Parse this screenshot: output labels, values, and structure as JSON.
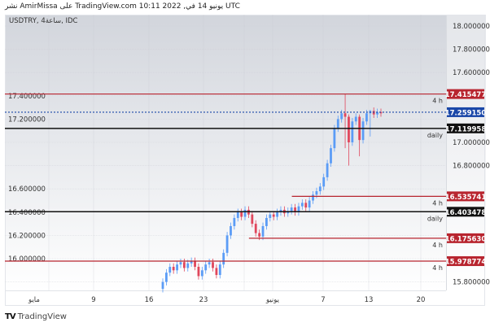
{
  "header": {
    "published": "نشر AmirMissa على TradingView.com 10:11 2022 ,يونيو 14 في UTC",
    "symbol": "USDTRY, 4ساعة, IDC"
  },
  "footer": {
    "brand": "TradingView",
    "logo_icon": "tradingview-logo-icon"
  },
  "colors": {
    "up": "#5b9cf6",
    "down": "#e0475c",
    "resistance": "#b8252f",
    "support_daily": "#111111",
    "current": "#1a47a8"
  },
  "chart_data": {
    "type": "candlestick",
    "title": "USDTRY, 4ساعة, IDC",
    "ylim": [
      15.7,
      18.1
    ],
    "y_ticks": [
      "18.000000",
      "17.800000",
      "17.600000",
      "17.400000",
      "17.200000",
      "17.000000",
      "16.800000",
      "16.600000",
      "16.400000",
      "16.200000",
      "16.000000",
      "15.800000"
    ],
    "x_ticks": [
      "مايو",
      "9",
      "16",
      "23",
      "يونيو",
      "7",
      "13",
      "20"
    ],
    "grid": true,
    "closes": [
      15.8,
      15.88,
      15.93,
      15.9,
      15.95,
      15.97,
      15.92,
      15.96,
      15.98,
      15.93,
      15.85,
      15.9,
      15.95,
      15.97,
      15.92,
      15.86,
      15.95,
      16.05,
      16.2,
      16.28,
      16.35,
      16.4,
      16.36,
      16.42,
      16.38,
      16.3,
      16.22,
      16.19,
      16.28,
      16.35,
      16.38,
      16.36,
      16.4,
      16.42,
      16.39,
      16.41,
      16.44,
      16.4,
      16.45,
      16.48,
      16.44,
      16.5,
      16.55,
      16.58,
      16.62,
      16.7,
      16.82,
      16.95,
      17.12,
      17.2,
      17.25,
      17.22,
      17.0,
      17.18,
      17.22,
      17.02,
      17.18,
      17.25,
      17.27,
      17.24,
      17.26,
      17.25
    ],
    "first_open": 15.74,
    "extremes": [
      {
        "index": 51,
        "high": 17.42,
        "low": 16.95
      },
      {
        "index": 52,
        "high": 17.24,
        "low": 16.8
      },
      {
        "index": 55,
        "high": 17.24,
        "low": 16.88
      },
      {
        "index": 58,
        "high": 17.28,
        "low": 17.05
      }
    ],
    "levels": [
      {
        "price": "17.415477",
        "tag": "4 h",
        "style": "red",
        "from_index": 0
      },
      {
        "price": "17.259150",
        "tag": "",
        "style": "current",
        "from_index": 0
      },
      {
        "price": "17.119958",
        "tag": "daily",
        "style": "daily",
        "from_index": 0
      },
      {
        "price": "16.535741",
        "tag": "4 h",
        "style": "red",
        "from_index": 37
      },
      {
        "price": "16.403478",
        "tag": "daily",
        "style": "daily",
        "from_index": 0
      },
      {
        "price": "16.175630",
        "tag": "4 h",
        "style": "red",
        "from_index": 25
      },
      {
        "price": "15.978774",
        "tag": "4 h",
        "style": "red",
        "from_index": 0
      }
    ]
  }
}
